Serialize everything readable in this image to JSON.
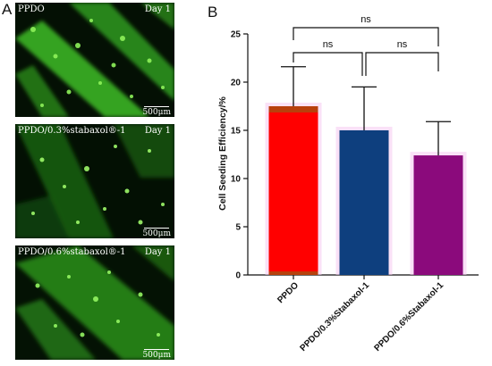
{
  "panel_a": {
    "letter": "A",
    "images": [
      {
        "label": "PPDO",
        "day": "Day 1",
        "scale": "500μm"
      },
      {
        "label": "PPDO/0.3%stabaxol®-1",
        "day": "Day 1",
        "scale": "500μm"
      },
      {
        "label": "PPDO/0.6%stabaxol®-1",
        "day": "Day 1",
        "scale": "500μm"
      }
    ]
  },
  "panel_b": {
    "letter": "B"
  },
  "colors": {
    "bar_ppdo": "#ff0000",
    "bar_03": "#0e3f7e",
    "bar_06": "#8b0a7c",
    "fluorescence": "#3dbd1f"
  },
  "chart_data": {
    "type": "bar",
    "categories": [
      "PPDO",
      "PPDO/0.3%Stabaxol-1",
      "PPDO/0.6%Stabaxol-1"
    ],
    "values": [
      17.5,
      15.0,
      12.4
    ],
    "errors": [
      4.1,
      4.5,
      3.5
    ],
    "ylabel": "Cell Seeding Efficiency/%",
    "ylim": [
      0,
      25
    ],
    "yticks": [
      0,
      5,
      10,
      15,
      20,
      25
    ],
    "significance": [
      {
        "pair": [
          0,
          2
        ],
        "label": "ns"
      },
      {
        "pair": [
          0,
          1
        ],
        "label": "ns"
      },
      {
        "pair": [
          1,
          2
        ],
        "label": "ns"
      }
    ]
  }
}
